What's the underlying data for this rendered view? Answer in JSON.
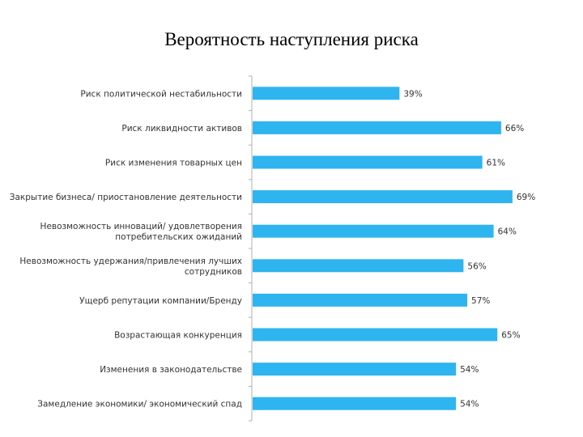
{
  "chart_data": {
    "type": "bar",
    "orientation": "horizontal",
    "title": "Вероятность наступления риска",
    "categories": [
      [
        "Риск политической нестабильности"
      ],
      [
        "Риск ликвидности активов"
      ],
      [
        "Риск изменения товарных цен"
      ],
      [
        "Закрытие бизнеса/ приостановление деятельности"
      ],
      [
        "Невозможность инноваций/ удовлетворения",
        "потребительских ожиданий"
      ],
      [
        "Невозможность удержания/привлечения лучших",
        "сотрудников"
      ],
      [
        "Ущерб репутации компании/Бренду"
      ],
      [
        "Возрастающая конкуренция"
      ],
      [
        "Изменения в законодательстве"
      ],
      [
        "Замедление экономики/ экономический спад"
      ]
    ],
    "values": [
      39,
      66,
      61,
      69,
      64,
      56,
      57,
      65,
      54,
      54
    ],
    "value_labels": [
      "39%",
      "66%",
      "61%",
      "69%",
      "64%",
      "56%",
      "57%",
      "65%",
      "54%",
      "54%"
    ],
    "xlim": [
      0,
      100
    ],
    "bar_color": "#2eb5f0",
    "axis_color": "#b0b0b0",
    "grid": false,
    "legend": "none"
  }
}
